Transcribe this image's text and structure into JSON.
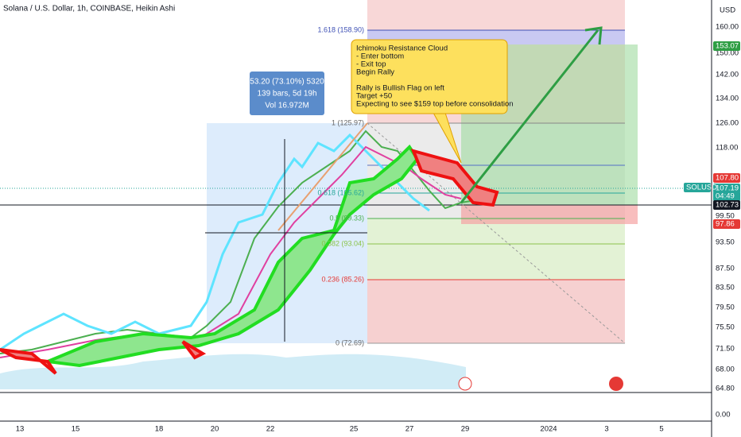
{
  "header": {
    "title": "Solana / U.S. Dollar, 1h, COINBASE, Heikin Ashi",
    "currency": "USD"
  },
  "price_axis": [
    "160.00",
    "150.00",
    "142.00",
    "134.00",
    "126.00",
    "118.00",
    "99.50",
    "93.50",
    "87.50",
    "83.50",
    "79.50",
    "75.50",
    "71.50",
    "68.00",
    "64.80",
    "0.00"
  ],
  "time_axis": [
    "13",
    "15",
    "18",
    "20",
    "22",
    "25",
    "27",
    "29",
    "2024",
    "3",
    "5"
  ],
  "badges": {
    "target": "153.07",
    "red_top": "107.80",
    "symbol": "SOLUSD",
    "last": "107.19",
    "countdown": "04:49",
    "dark": "102.73",
    "red_low": "97.86"
  },
  "fib_levels": [
    "1.618 (158.90)",
    "1 (125.97)",
    "0.618 (105.62)",
    "0.5 (99.33)",
    "0.382 (93.04)",
    "0.236 (85.26)",
    "0 (72.69)"
  ],
  "measure": [
    "53.20 (73.10%) 5320",
    "139 bars, 5d 19h",
    "Vol 16.972M"
  ],
  "annotation": [
    "Ichimoku Resistance Cloud",
    "- Enter bottom",
    "- Exit top",
    "Begin Rally",
    "",
    "Rally is Bullish Flag on left",
    "Target +50",
    "Expecting to see $159 top before consolidation"
  ]
}
